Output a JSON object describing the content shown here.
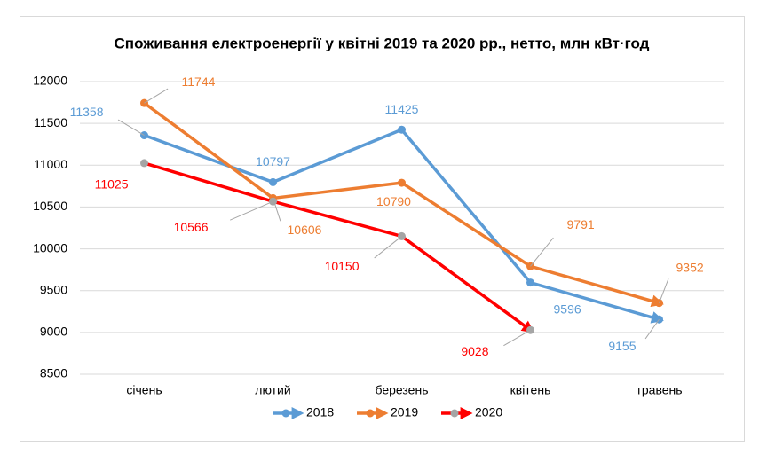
{
  "chart_data": {
    "type": "line",
    "title": "Споживання електроенергії у квітні 2019 та 2020 рр., нетто, млн кВт·год",
    "categories": [
      "січень",
      "лютий",
      "березень",
      "квітень",
      "травень"
    ],
    "series": [
      {
        "name": "2018",
        "color": "#5b9bd5",
        "marker_color": "#5b9bd5",
        "values": [
          11358,
          10797,
          11425,
          9596,
          9155
        ]
      },
      {
        "name": "2019",
        "color": "#ed7d31",
        "marker_color": "#ed7d31",
        "values": [
          11744,
          10606,
          10790,
          9791,
          9352
        ]
      },
      {
        "name": "2020",
        "color": "#ff0000",
        "marker_color": "#a5a5a5",
        "values": [
          11025,
          10566,
          10150,
          9028,
          null
        ]
      }
    ],
    "ylim": [
      8500,
      12000
    ],
    "yticks": [
      8500,
      9000,
      9500,
      10000,
      10500,
      11000,
      11500,
      12000
    ],
    "grid": true,
    "legend": "bottom"
  }
}
